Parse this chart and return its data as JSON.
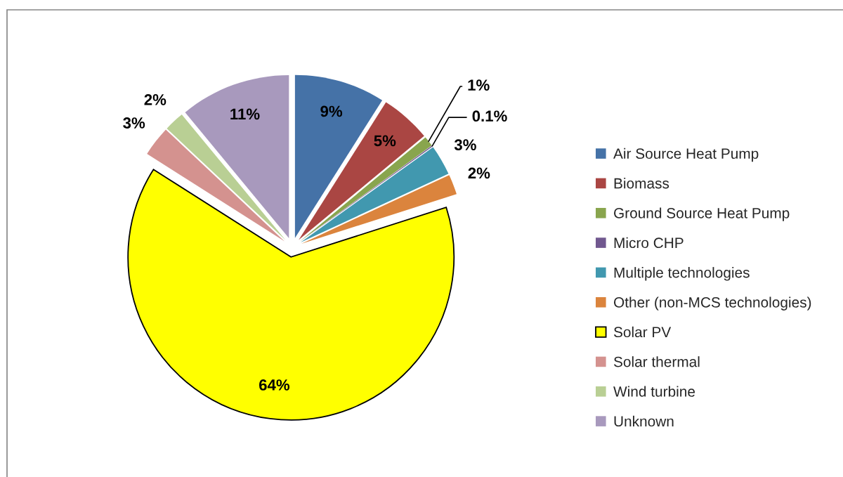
{
  "chart_data": {
    "type": "pie",
    "categories": [
      "Air Source Heat Pump",
      "Biomass",
      "Ground Source Heat Pump",
      "Micro CHP",
      "Multiple technologies",
      "Other (non-MCS technologies)",
      "Solar PV",
      "Solar thermal",
      "Wind turbine",
      "Unknown"
    ],
    "values": [
      9,
      5,
      1,
      0.1,
      3,
      2,
      64,
      3,
      2,
      11
    ],
    "colors": [
      "#4572a7",
      "#aa4643",
      "#89a54e",
      "#71588f",
      "#4198af",
      "#db843d",
      "#ffff00",
      "#d4928f",
      "#b9cf94",
      "#a899bd"
    ],
    "value_labels": [
      "9%",
      "5%",
      "1%",
      "0.1%",
      "3%",
      "2%",
      "64%",
      "3%",
      "2%",
      "11%"
    ],
    "legend": "right"
  }
}
